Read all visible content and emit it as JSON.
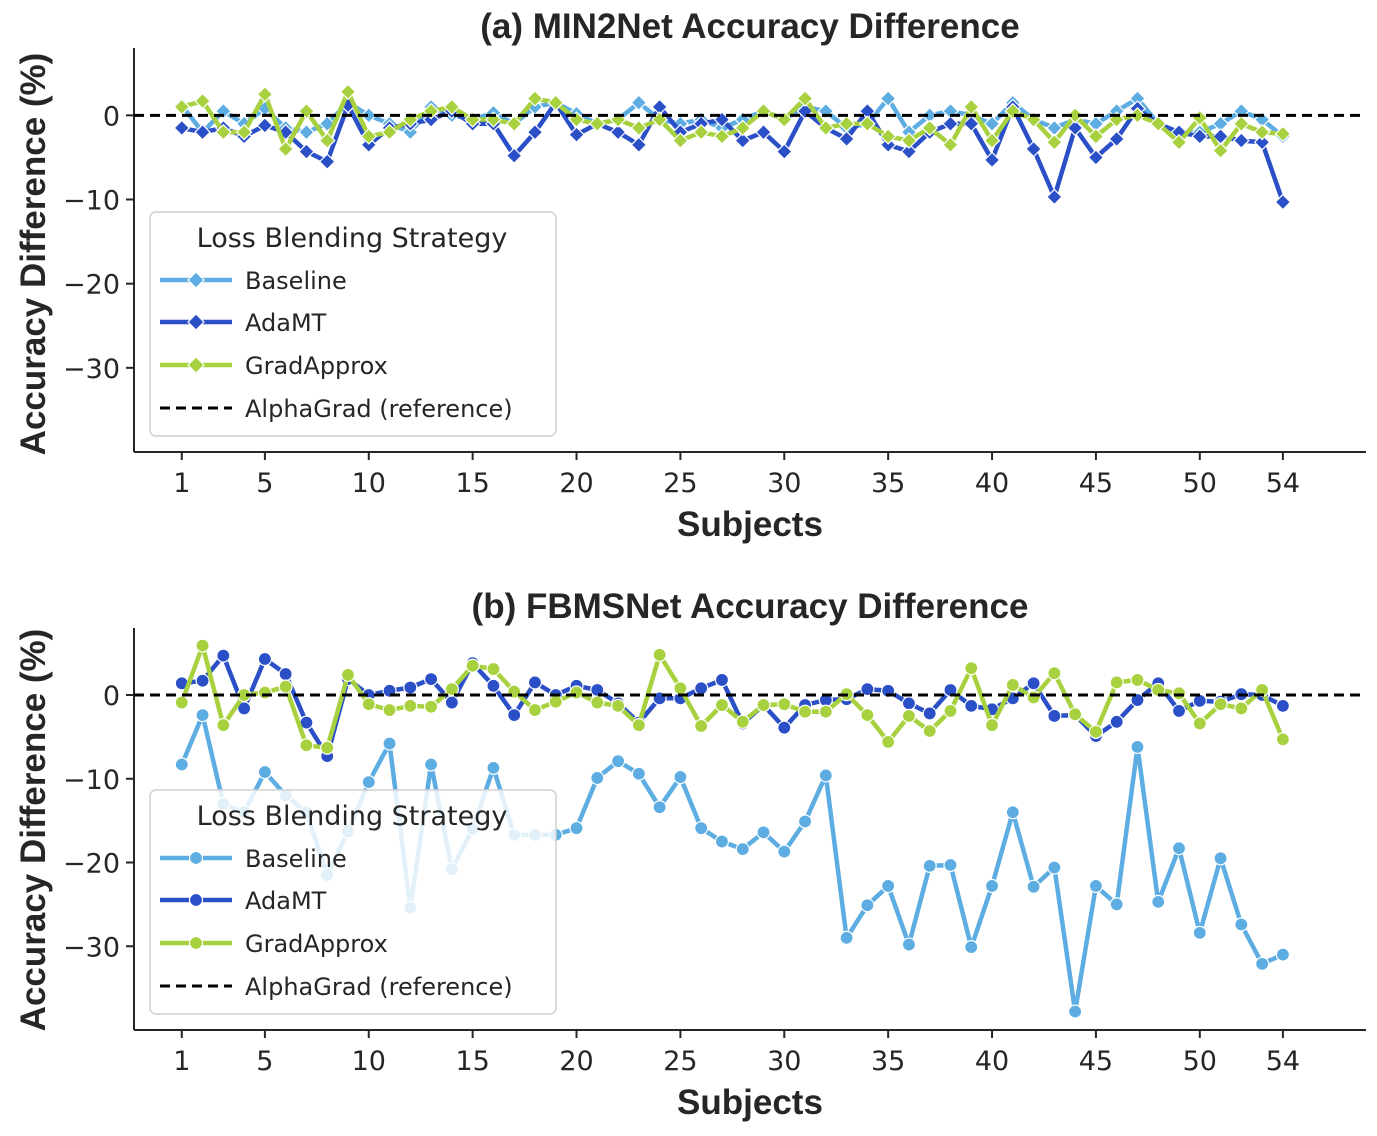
{
  "chart_data": [
    {
      "type": "line",
      "title": "(a) MIN2Net Accuracy Difference",
      "xlabel": "Subjects",
      "ylabel": "Accuracy Difference (%)",
      "xticks": [
        1,
        5,
        10,
        15,
        20,
        25,
        30,
        35,
        40,
        45,
        50,
        54
      ],
      "yticks": [
        0,
        -10,
        -20,
        -30
      ],
      "xlim": [
        -1.3,
        58
      ],
      "ylim": [
        -40,
        8
      ],
      "marker": "diamond",
      "legend": {
        "title": "Loss Blending Strategy",
        "placement": "center-left",
        "entries": [
          "Baseline",
          "AdaMT",
          "GradApprox",
          "AlphaGrad (reference)"
        ]
      },
      "reference_line": {
        "name": "AlphaGrad (reference)",
        "y": 0,
        "color": "#000000"
      },
      "x": [
        1,
        2,
        3,
        4,
        5,
        6,
        7,
        8,
        9,
        10,
        11,
        12,
        13,
        14,
        15,
        16,
        17,
        18,
        19,
        20,
        21,
        22,
        23,
        24,
        25,
        26,
        27,
        28,
        29,
        30,
        31,
        32,
        33,
        34,
        35,
        36,
        37,
        38,
        39,
        40,
        41,
        42,
        43,
        44,
        45,
        46,
        47,
        48,
        49,
        50,
        51,
        52,
        53,
        54
      ],
      "series": [
        {
          "name": "Baseline",
          "color": "#5dade2",
          "values": [
            1.2,
            -2.0,
            0.5,
            -1.0,
            0.8,
            -1.5,
            -2.0,
            -1.0,
            1.5,
            0.0,
            -1.0,
            -2.0,
            1.0,
            0.0,
            -0.5,
            0.3,
            -1.0,
            1.0,
            1.5,
            0.2,
            -1.0,
            -0.5,
            1.5,
            -0.5,
            -1.0,
            -0.5,
            -1.5,
            -0.5,
            0.5,
            -0.5,
            1.0,
            0.5,
            -1.5,
            -1.0,
            2.0,
            -2.0,
            0.0,
            0.5,
            0.0,
            -1.0,
            1.5,
            -0.5,
            -1.5,
            -0.5,
            -1.0,
            0.5,
            2.0,
            -1.0,
            -2.0,
            -2.0,
            -1.0,
            0.5,
            -0.5,
            -2.5
          ]
        },
        {
          "name": "AdaMT",
          "color": "#2a4fc7",
          "values": [
            -1.5,
            -2.0,
            -1.5,
            -2.5,
            -1.2,
            -2.0,
            -4.3,
            -5.5,
            1.2,
            -3.5,
            -1.5,
            -1.0,
            -0.5,
            0.5,
            -1.0,
            -1.0,
            -4.8,
            -2.0,
            1.5,
            -2.3,
            -1.0,
            -2.0,
            -3.5,
            1.0,
            -2.0,
            -1.0,
            -0.5,
            -3.0,
            -2.0,
            -4.3,
            0.5,
            -1.5,
            -2.8,
            0.5,
            -3.5,
            -4.3,
            -2.0,
            -1.0,
            -1.0,
            -5.3,
            1.0,
            -4.0,
            -9.7,
            -1.5,
            -5.0,
            -2.8,
            0.8,
            -1.0,
            -2.0,
            -2.5,
            -2.5,
            -3.0,
            -3.2,
            -10.3
          ]
        },
        {
          "name": "GradApprox",
          "color": "#a8d13f",
          "values": [
            1.0,
            1.7,
            -2.0,
            -2.0,
            2.5,
            -4.0,
            0.5,
            -3.0,
            2.8,
            -2.5,
            -2.0,
            -0.5,
            0.5,
            1.0,
            -0.5,
            -0.5,
            -1.0,
            2.0,
            1.5,
            -0.5,
            -1.0,
            -0.5,
            -1.5,
            -0.5,
            -3.0,
            -2.0,
            -2.5,
            -1.5,
            0.5,
            -0.5,
            2.0,
            -1.5,
            -1.0,
            -1.0,
            -2.5,
            -3.0,
            -1.5,
            -3.5,
            1.0,
            -3.0,
            0.5,
            -0.5,
            -3.2,
            0.0,
            -2.5,
            -0.5,
            0.0,
            -1.0,
            -3.2,
            -0.3,
            -4.2,
            -1.0,
            -2.0,
            -2.2
          ]
        }
      ]
    },
    {
      "type": "line",
      "title": "(b) FBMSNet Accuracy Difference",
      "xlabel": "Subjects",
      "ylabel": "Accuracy Difference (%)",
      "xticks": [
        1,
        5,
        10,
        15,
        20,
        25,
        30,
        35,
        40,
        45,
        50,
        54
      ],
      "yticks": [
        0,
        -10,
        -20,
        -30
      ],
      "xlim": [
        -1.3,
        58
      ],
      "ylim": [
        -40,
        8
      ],
      "marker": "circle",
      "legend": {
        "title": "Loss Blending Strategy",
        "placement": "center-left",
        "entries": [
          "Baseline",
          "AdaMT",
          "GradApprox",
          "AlphaGrad (reference)"
        ]
      },
      "reference_line": {
        "name": "AlphaGrad (reference)",
        "y": 0,
        "color": "#000000"
      },
      "x": [
        1,
        2,
        3,
        4,
        5,
        6,
        7,
        8,
        9,
        10,
        11,
        12,
        13,
        14,
        15,
        16,
        17,
        18,
        19,
        20,
        21,
        22,
        23,
        24,
        25,
        26,
        27,
        28,
        29,
        30,
        31,
        32,
        33,
        34,
        35,
        36,
        37,
        38,
        39,
        40,
        41,
        42,
        43,
        44,
        45,
        46,
        47,
        48,
        49,
        50,
        51,
        52,
        53,
        54
      ],
      "series": [
        {
          "name": "Baseline",
          "color": "#5dade2",
          "values": [
            -8.3,
            -2.4,
            -13.0,
            -14.0,
            -9.2,
            -12.0,
            -14.0,
            -21.5,
            -16.3,
            -10.4,
            -5.8,
            -25.4,
            -8.3,
            -20.8,
            -16.0,
            -8.7,
            -16.7,
            -16.7,
            -16.7,
            -15.9,
            -9.9,
            -7.9,
            -9.4,
            -13.4,
            -9.8,
            -15.9,
            -17.5,
            -18.4,
            -16.4,
            -18.7,
            -15.1,
            -9.6,
            -29.0,
            -25.1,
            -22.8,
            -29.8,
            -20.4,
            -20.3,
            -30.1,
            -22.8,
            -14.0,
            -22.9,
            -20.6,
            -37.8,
            -22.8,
            -25.0,
            -6.2,
            -24.7,
            -18.3,
            -28.4,
            -19.5,
            -27.4,
            -32.1,
            -31.0
          ]
        },
        {
          "name": "AdaMT",
          "color": "#2a4fc7",
          "values": [
            1.4,
            1.7,
            4.7,
            -1.6,
            4.3,
            2.5,
            -3.3,
            -7.3,
            1.9,
            0.0,
            0.5,
            0.9,
            1.9,
            -0.9,
            3.8,
            1.1,
            -2.4,
            1.5,
            0.0,
            1.1,
            0.6,
            -1.0,
            -3.3,
            -0.4,
            -0.4,
            0.8,
            1.8,
            -3.4,
            -1.2,
            -3.9,
            -1.2,
            -0.6,
            -0.5,
            0.7,
            0.5,
            -1.0,
            -2.2,
            0.6,
            -1.3,
            -1.7,
            -0.4,
            1.4,
            -2.5,
            -2.4,
            -4.9,
            -3.2,
            -0.6,
            1.4,
            -1.9,
            -0.7,
            -0.8,
            0.1,
            0.0,
            -1.3
          ]
        },
        {
          "name": "GradApprox",
          "color": "#a8d13f",
          "values": [
            -0.9,
            5.9,
            -3.6,
            0.0,
            0.3,
            1.0,
            -6.0,
            -6.3,
            2.4,
            -1.1,
            -1.8,
            -1.3,
            -1.4,
            0.7,
            3.5,
            3.1,
            0.4,
            -1.8,
            -0.8,
            0.3,
            -0.9,
            -1.3,
            -3.6,
            4.8,
            0.8,
            -3.7,
            -1.2,
            -3.2,
            -1.2,
            -1.1,
            -2.0,
            -2.0,
            0.1,
            -2.4,
            -5.6,
            -2.5,
            -4.3,
            -1.9,
            3.2,
            -3.6,
            1.2,
            -0.3,
            2.6,
            -2.3,
            -4.4,
            1.5,
            1.8,
            0.6,
            0.2,
            -3.4,
            -1.1,
            -1.6,
            0.6,
            -5.3
          ]
        }
      ]
    }
  ]
}
